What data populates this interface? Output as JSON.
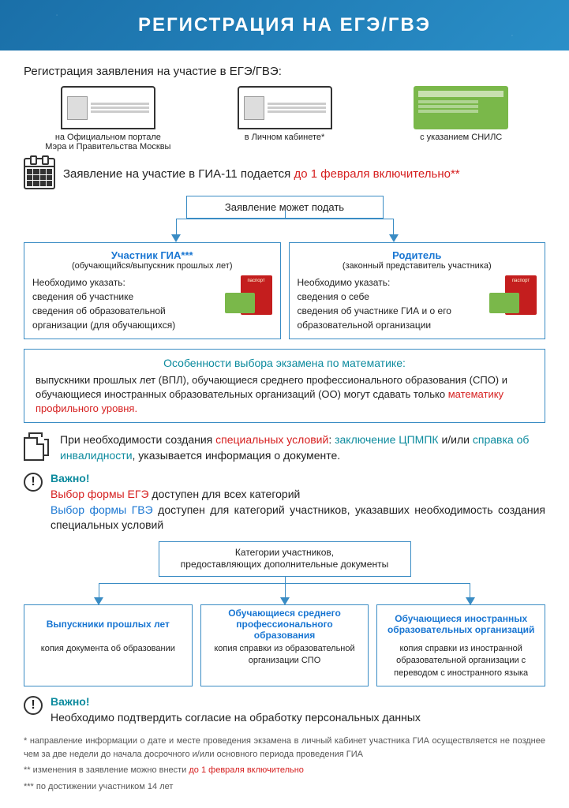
{
  "header": "РЕГИСТРАЦИЯ НА ЕГЭ/ГВЭ",
  "subtitle": "Регистрация заявления на участие в ЕГЭ/ГВЭ:",
  "portals": {
    "p1": "на Официальном портале\nМэра и Правительства Москвы",
    "p2": "в Личном кабинете*",
    "p3": "с указанием СНИЛС"
  },
  "calendar": {
    "text": "Заявление на участие в ГИА-11 подается ",
    "deadline": "до 1 февраля включительно**"
  },
  "flow_head": "Заявление может подать",
  "applicant1": {
    "title": "Участник ГИА***",
    "sub": "(обучающийся/выпускник прошлых лет)",
    "l1": "Необходимо указать:",
    "l2": "сведения об участнике",
    "l3": "сведения об образовательной организации (для обучающихся)"
  },
  "applicant2": {
    "title": "Родитель",
    "sub": "(законный представитель участника)",
    "l1": "Необходимо указать:",
    "l2": "сведения о себе",
    "l3": "сведения об участнике ГИА и о его образовательной организации"
  },
  "math": {
    "h": "Особенности выбора экзамена по математике:",
    "body1": "выпускники прошлых лет (ВПЛ), обучающиеся среднего профессионального образования (СПО) и обучающиеся иностранных образовательных организаций (ОО) могут сдавать только ",
    "body2": "математику профильного уровня."
  },
  "special": {
    "t1": "При необходимости создания ",
    "t2": "специальных условий",
    "t3": ": ",
    "t4": "заключение ЦПМПК",
    "t5": " и/или ",
    "t6": "справка об инвалидности",
    "t7": ", указывается информация о документе."
  },
  "warn1": {
    "h": "Важно!",
    "l1a": "Выбор формы ЕГЭ",
    "l1b": " доступен для всех категорий",
    "l2a": "Выбор формы ГВЭ",
    "l2b": " доступен для категорий участников, указавших необходимость создания специальных условий"
  },
  "cat_head": "Категории участников,\nпредоставляющих дополнительные документы",
  "cat1": {
    "h": "Выпускники прошлых лет",
    "b": "копия документа об образовании"
  },
  "cat2": {
    "h": "Обучающиеся среднего профессионального образования",
    "b": "копия справки из образовательной организации СПО"
  },
  "cat3": {
    "h": "Обучающиеся иностранных образовательных организаций",
    "b": "копия справки из иностранной образовательной организации с переводом с иностранного языка"
  },
  "warn2": {
    "h": "Важно!",
    "b": "Необходимо подтвердить согласие на обработку персональных данных"
  },
  "foot": {
    "f1": "* направление информации о дате и месте проведения экзамена в личный кабинет участника ГИА осуществляется не позднее чем за две недели до начала досрочного и/или основного периода проведения ГИА",
    "f2a": "** изменения в заявление можно внести ",
    "f2b": "до 1 февраля включительно",
    "f3": "*** по достижении участником 14 лет"
  }
}
